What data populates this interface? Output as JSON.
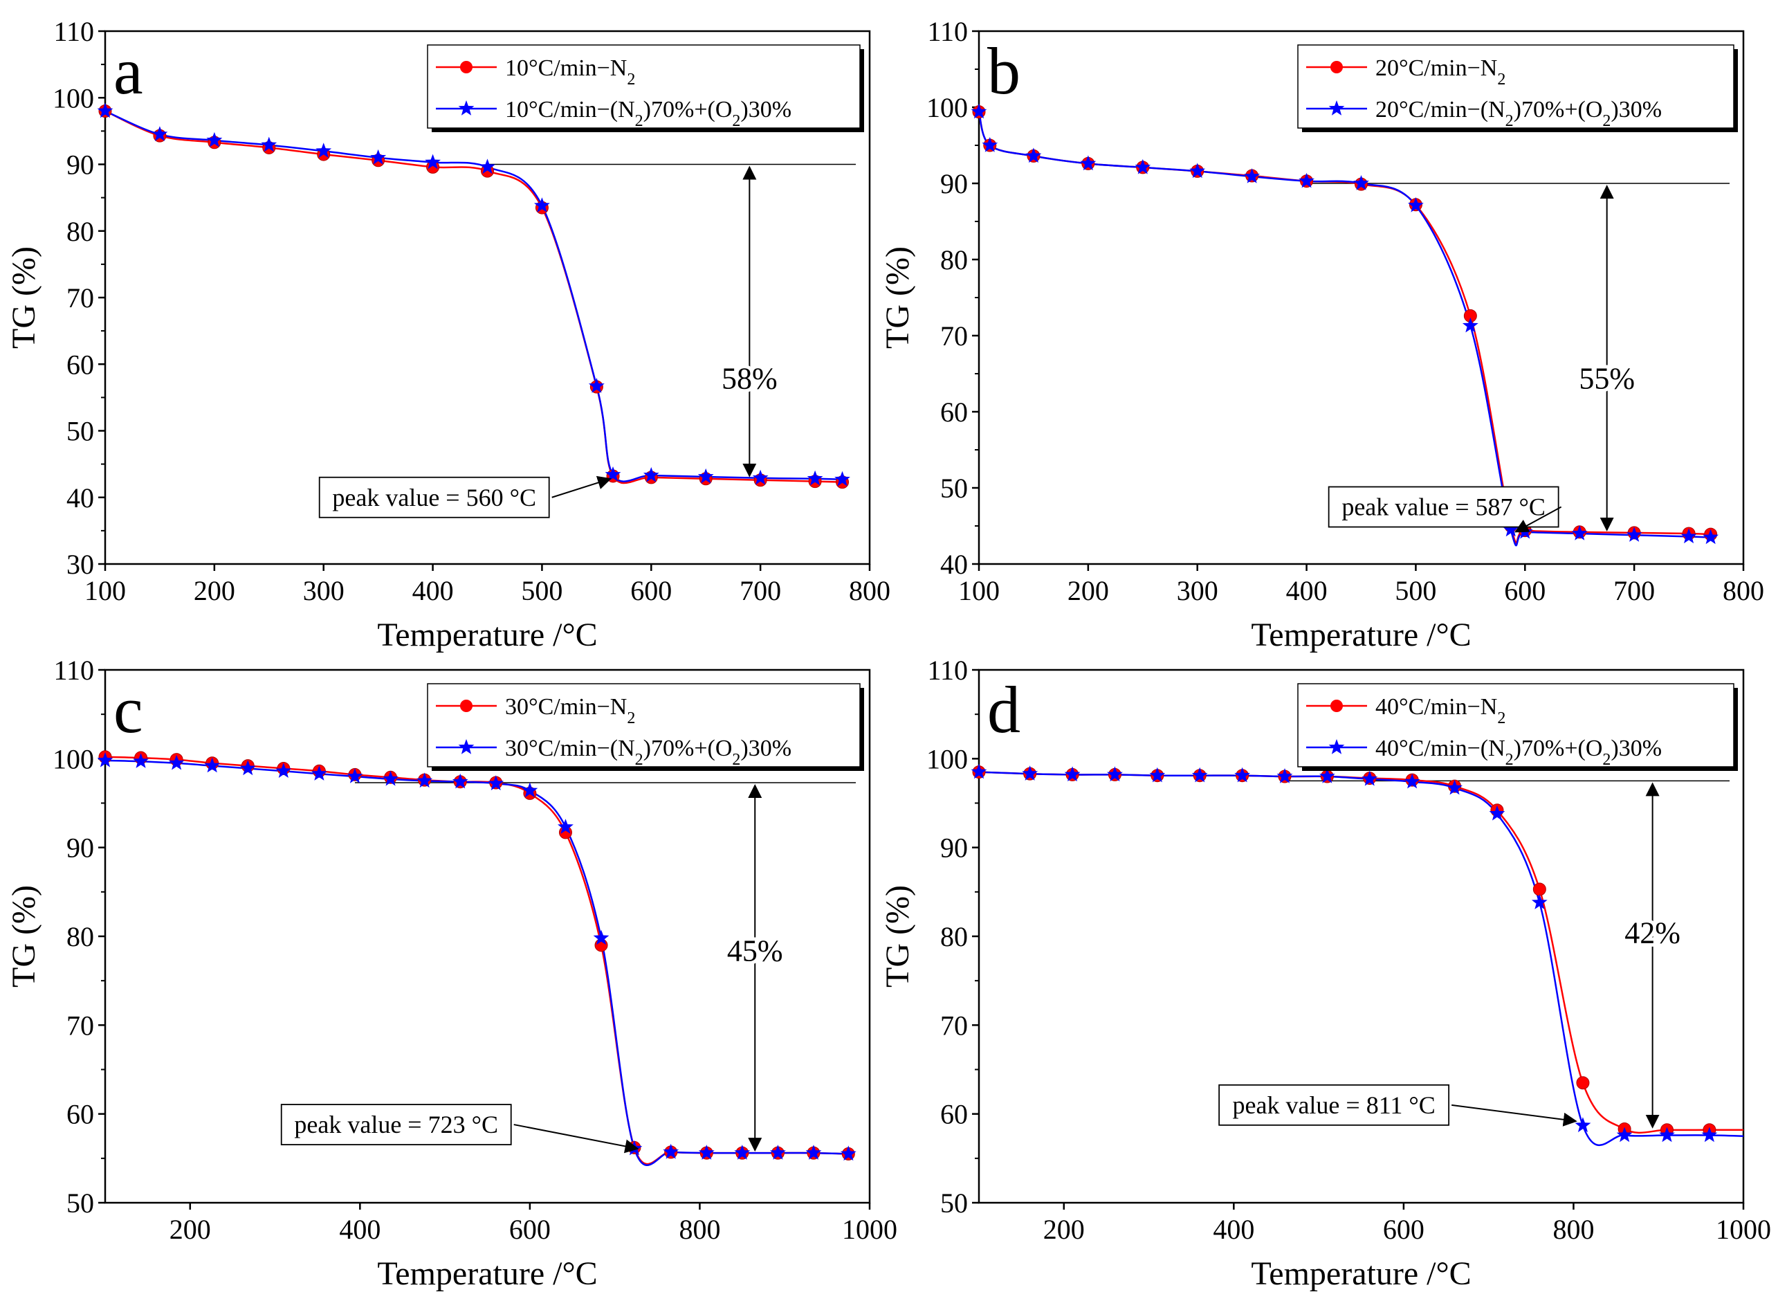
{
  "colors": {
    "n2": "#ff0000",
    "mix": "#0000ff",
    "axis": "#000000",
    "ref": "#555555"
  },
  "chart_data": [
    {
      "type": "line",
      "panel_label": "a",
      "xlabel": "Temperature /°C",
      "ylabel": "TG (%)",
      "xlim": [
        100,
        800
      ],
      "ylim": [
        30,
        110
      ],
      "xticks": [
        100,
        200,
        300,
        400,
        500,
        600,
        700,
        800
      ],
      "yticks": [
        30,
        40,
        50,
        60,
        70,
        80,
        90,
        100,
        110
      ],
      "legend": {
        "position": "top-right"
      },
      "series": [
        {
          "name": "10°C/min−N2",
          "name_main": "10°C/min−N",
          "name_sub": "2",
          "marker": "circle",
          "color": "#ff0000",
          "x": [
            100,
            150,
            200,
            250,
            300,
            350,
            400,
            450,
            500,
            550,
            565,
            600,
            650,
            700,
            750,
            775
          ],
          "y": [
            98.0,
            94.3,
            93.3,
            92.5,
            91.5,
            90.6,
            89.6,
            89.0,
            83.5,
            56.6,
            43.2,
            43.0,
            42.8,
            42.6,
            42.4,
            42.3
          ]
        },
        {
          "name": "10°C/min−(N2)70%+(O2)30%",
          "name_parts": [
            "10°C/min−(N",
            "2",
            ")70%+(O",
            "2",
            ")30%"
          ],
          "marker": "star",
          "color": "#0000ff",
          "x": [
            100,
            150,
            200,
            250,
            300,
            350,
            400,
            450,
            500,
            550,
            565,
            600,
            650,
            700,
            750,
            775
          ],
          "y": [
            98.0,
            94.5,
            93.6,
            92.9,
            92.0,
            91.0,
            90.3,
            89.6,
            83.8,
            56.7,
            43.4,
            43.3,
            43.1,
            42.9,
            42.8,
            42.7
          ]
        }
      ],
      "annotation": {
        "mass_loss": "58%",
        "ref_level": 90,
        "arrow_x": 690,
        "arrow_bottom": 42.8,
        "label_y": 58
      },
      "peak": {
        "label": "peak value = 560 °C",
        "temp": 565,
        "tg": 43.2,
        "box_x": 296,
        "box_y": 40
      }
    },
    {
      "type": "line",
      "panel_label": "b",
      "xlabel": "Temperature /°C",
      "ylabel": "TG (%)",
      "xlim": [
        100,
        800
      ],
      "ylim": [
        40,
        110
      ],
      "xticks": [
        100,
        200,
        300,
        400,
        500,
        600,
        700,
        800
      ],
      "yticks": [
        40,
        50,
        60,
        70,
        80,
        90,
        100,
        110
      ],
      "legend": {
        "position": "top-right"
      },
      "series": [
        {
          "name": "20°C/min−N2",
          "name_main": "20°C/min−N",
          "name_sub": "2",
          "marker": "circle",
          "color": "#ff0000",
          "x": [
            100,
            110,
            150,
            200,
            250,
            300,
            350,
            400,
            450,
            500,
            550,
            587,
            600,
            650,
            700,
            750,
            770
          ],
          "y": [
            99.4,
            95.0,
            93.6,
            92.6,
            92.1,
            91.6,
            91.0,
            90.3,
            89.9,
            87.2,
            72.6,
            45.0,
            44.4,
            44.2,
            44.1,
            44.0,
            43.9
          ]
        },
        {
          "name": "20°C/min−(N2)70%+(O2)30%",
          "name_parts": [
            "20°C/min−(N",
            "2",
            ")70%+(O",
            "2",
            ")30%"
          ],
          "marker": "star",
          "color": "#0000ff",
          "x": [
            100,
            110,
            150,
            200,
            250,
            300,
            350,
            400,
            450,
            500,
            550,
            587,
            600,
            650,
            700,
            750,
            770
          ],
          "y": [
            99.4,
            95.0,
            93.6,
            92.6,
            92.1,
            91.6,
            90.9,
            90.3,
            90.0,
            87.1,
            71.3,
            44.5,
            44.2,
            44.0,
            43.8,
            43.6,
            43.5
          ]
        }
      ],
      "annotation": {
        "mass_loss": "55%",
        "ref_level": 90,
        "arrow_x": 675,
        "arrow_bottom": 44.1,
        "label_y": 64.5
      },
      "peak": {
        "label": "peak value = 587 °C",
        "temp": 594,
        "tg": 44.6,
        "box_x": 420,
        "box_y": 47.5
      }
    },
    {
      "type": "line",
      "panel_label": "c",
      "xlabel": "Temperature /°C",
      "ylabel": "TG (%)",
      "xlim": [
        100,
        1000
      ],
      "ylim": [
        50,
        110
      ],
      "xticks": [
        200,
        400,
        600,
        800,
        1000
      ],
      "yticks": [
        50,
        60,
        70,
        80,
        90,
        100,
        110
      ],
      "legend": {
        "position": "top-right"
      },
      "series": [
        {
          "name": "30°C/min−N2",
          "name_main": "30°C/min−N",
          "name_sub": "2",
          "marker": "circle",
          "color": "#ff0000",
          "x": [
            100,
            142,
            184,
            226,
            268,
            310,
            352,
            394,
            436,
            476,
            518,
            560,
            600,
            642,
            684,
            723,
            766,
            808,
            850,
            892,
            934,
            975
          ],
          "y": [
            100.2,
            100.1,
            99.9,
            99.5,
            99.2,
            98.9,
            98.6,
            98.2,
            97.9,
            97.6,
            97.4,
            97.3,
            96.1,
            91.7,
            79.0,
            56.2,
            55.7,
            55.6,
            55.6,
            55.6,
            55.6,
            55.5
          ]
        },
        {
          "name": "30°C/min−(N2)70%+(O2)30%",
          "name_parts": [
            "30°C/min−(N",
            "2",
            ")70%+(O",
            "2",
            ")30%"
          ],
          "marker": "star",
          "color": "#0000ff",
          "x": [
            100,
            142,
            184,
            226,
            268,
            310,
            352,
            394,
            436,
            476,
            518,
            560,
            600,
            642,
            684,
            723,
            766,
            808,
            850,
            892,
            934,
            975
          ],
          "y": [
            99.8,
            99.7,
            99.5,
            99.2,
            98.9,
            98.6,
            98.3,
            98.0,
            97.7,
            97.5,
            97.4,
            97.2,
            96.4,
            92.3,
            79.8,
            56.1,
            55.7,
            55.6,
            55.6,
            55.6,
            55.6,
            55.5
          ]
        }
      ],
      "annotation": {
        "mass_loss": "45%",
        "ref_level": 97.3,
        "arrow_x": 865,
        "arrow_bottom": 55.6,
        "label_y": 78.5
      },
      "peak": {
        "label": "peak value = 723 °C",
        "temp": 730,
        "tg": 56.4,
        "box_x": 326,
        "box_y": 58.8
      }
    },
    {
      "type": "line",
      "panel_label": "d",
      "xlabel": "Temperature /°C",
      "ylabel": "TG (%)",
      "xlim": [
        100,
        1000
      ],
      "ylim": [
        50,
        110
      ],
      "xticks": [
        200,
        400,
        600,
        800,
        1000
      ],
      "yticks": [
        50,
        60,
        70,
        80,
        90,
        100,
        110
      ],
      "legend": {
        "position": "top-right"
      },
      "series": [
        {
          "name": "40°C/min−N2",
          "name_main": "40°C/min−N",
          "name_sub": "2",
          "marker": "circle",
          "color": "#ff0000",
          "x": [
            100,
            160,
            210,
            260,
            310,
            360,
            410,
            460,
            510,
            560,
            610,
            660,
            710,
            760,
            811,
            860,
            910,
            960,
            1000
          ],
          "y": [
            98.5,
            98.3,
            98.2,
            98.2,
            98.1,
            98.1,
            98.1,
            98.0,
            98.0,
            97.8,
            97.6,
            96.9,
            94.2,
            85.3,
            63.5,
            58.3,
            58.2,
            58.2,
            58.2
          ]
        },
        {
          "name": "40°C/min−(N2)70%+(O2)30%",
          "name_parts": [
            "40°C/min−(N",
            "2",
            ")70%+(O",
            "2",
            ")30%"
          ],
          "marker": "star",
          "color": "#0000ff",
          "x": [
            100,
            160,
            210,
            260,
            310,
            360,
            410,
            460,
            510,
            560,
            610,
            660,
            710,
            760,
            811,
            860,
            910,
            960,
            1000
          ],
          "y": [
            98.5,
            98.3,
            98.2,
            98.2,
            98.1,
            98.1,
            98.1,
            98.0,
            98.0,
            97.7,
            97.4,
            96.7,
            93.8,
            83.8,
            58.7,
            57.6,
            57.6,
            57.6,
            57.5
          ]
        }
      ],
      "annotation": {
        "mass_loss": "42%",
        "ref_level": 97.5,
        "arrow_x": 893,
        "arrow_bottom": 58.2,
        "label_y": 80.5
      },
      "peak": {
        "label": "peak value = 811 °C",
        "temp": 806,
        "tg": 59.5,
        "box_x": 408,
        "box_y": 61
      }
    }
  ]
}
